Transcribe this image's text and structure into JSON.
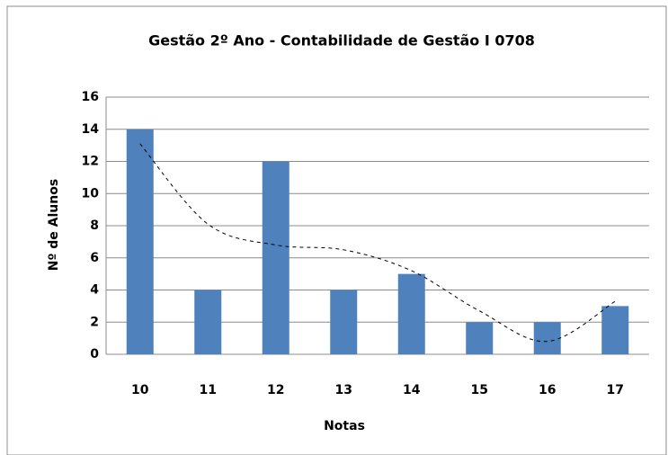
{
  "chart_data": {
    "type": "bar",
    "title": "Gestão 2º Ano - Contabilidade de Gestão I 0708",
    "x_label": "Notas",
    "y_label": "Nº de Alunos",
    "categories": [
      "10",
      "11",
      "12",
      "13",
      "14",
      "15",
      "16",
      "17"
    ],
    "values": [
      14,
      4,
      12,
      4,
      5,
      2,
      2,
      3
    ],
    "color": "#4f81bd",
    "trendline": {
      "values": [
        13.1,
        8.1,
        6.8,
        6.5,
        5.2,
        2.7,
        0.8,
        3.3
      ],
      "color": "#000000"
    },
    "ylim": [
      0,
      16
    ],
    "yticks": [
      0,
      2,
      4,
      6,
      8,
      10,
      12,
      14,
      16
    ],
    "grid": true
  }
}
